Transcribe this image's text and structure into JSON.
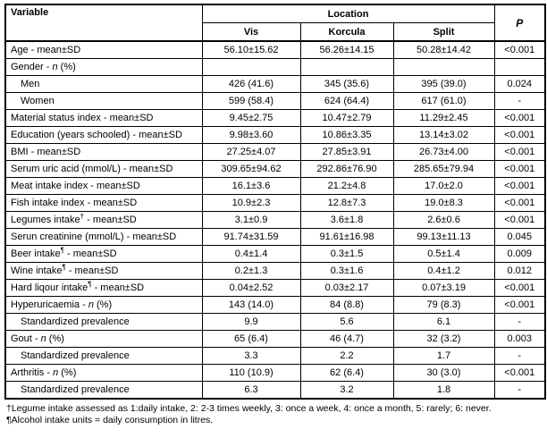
{
  "table": {
    "header": {
      "variable": "Variable",
      "location": "Location",
      "sub": [
        "Vis",
        "Korcula",
        "Split"
      ],
      "p": "P"
    },
    "rows": [
      {
        "indent": false,
        "parts": [
          {
            "t": "Age - mean±SD"
          }
        ],
        "cells": [
          "56.10±15.62",
          "56.26±14.15",
          "50.28±14.42",
          "<0.001"
        ]
      },
      {
        "indent": false,
        "parts": [
          {
            "t": "Gender - "
          },
          {
            "t": "n",
            "i": true
          },
          {
            "t": " (%)"
          }
        ],
        "cells": [
          "",
          "",
          "",
          ""
        ]
      },
      {
        "indent": true,
        "parts": [
          {
            "t": "Men"
          }
        ],
        "cells": [
          "426 (41.6)",
          "345 (35.6)",
          "395 (39.0)",
          "0.024"
        ]
      },
      {
        "indent": true,
        "parts": [
          {
            "t": "Women"
          }
        ],
        "cells": [
          "599 (58.4)",
          "624 (64.4)",
          "617 (61.0)",
          "-"
        ]
      },
      {
        "indent": false,
        "parts": [
          {
            "t": "Material status index - mean±SD"
          }
        ],
        "cells": [
          "9.45±2.75",
          "10.47±2.79",
          "11.29±2.45",
          "<0.001"
        ]
      },
      {
        "indent": false,
        "parts": [
          {
            "t": "Education (years schooled) - mean±SD"
          }
        ],
        "cells": [
          "9.98±3.60",
          "10.86±3.35",
          "13.14±3.02",
          "<0.001"
        ]
      },
      {
        "indent": false,
        "parts": [
          {
            "t": "BMI - mean±SD"
          }
        ],
        "cells": [
          "27.25±4.07",
          "27.85±3.91",
          "26.73±4.00",
          "<0.001"
        ]
      },
      {
        "indent": false,
        "parts": [
          {
            "t": "Serum uric acid (mmol/L) - mean±SD"
          }
        ],
        "cells": [
          "309.65±94.62",
          "292.86±76.90",
          "285.65±79.94",
          "<0.001"
        ]
      },
      {
        "indent": false,
        "parts": [
          {
            "t": "Meat intake index - mean±SD"
          }
        ],
        "cells": [
          "16.1±3.6",
          "21.2±4.8",
          "17.0±2.0",
          "<0.001"
        ]
      },
      {
        "indent": false,
        "parts": [
          {
            "t": "Fish intake index - mean±SD"
          }
        ],
        "cells": [
          "10.9±2.3",
          "12.8±7.3",
          "19.0±8.3",
          "<0.001"
        ]
      },
      {
        "indent": false,
        "parts": [
          {
            "t": "Legumes intake"
          },
          {
            "t": "†",
            "sup": true
          },
          {
            "t": " - mean±SD"
          }
        ],
        "cells": [
          "3.1±0.9",
          "3.6±1.8",
          "2.6±0.6",
          "<0.001"
        ]
      },
      {
        "indent": false,
        "parts": [
          {
            "t": "Serun creatinine (mmol/L) - mean±SD"
          }
        ],
        "cells": [
          "91.74±31.59",
          "91.61±16.98",
          "99.13±11.13",
          "0.045"
        ]
      },
      {
        "indent": false,
        "parts": [
          {
            "t": "Beer intake"
          },
          {
            "t": "¶",
            "sup": true
          },
          {
            "t": " - mean±SD"
          }
        ],
        "cells": [
          "0.4±1.4",
          "0.3±1.5",
          "0.5±1.4",
          "0.009"
        ]
      },
      {
        "indent": false,
        "parts": [
          {
            "t": "Wine intake"
          },
          {
            "t": "¶",
            "sup": true
          },
          {
            "t": " - mean±SD"
          }
        ],
        "cells": [
          "0.2±1.3",
          "0.3±1.6",
          "0.4±1.2",
          "0.012"
        ]
      },
      {
        "indent": false,
        "parts": [
          {
            "t": "Hard liqour intake"
          },
          {
            "t": "¶",
            "sup": true
          },
          {
            "t": " - mean±SD"
          }
        ],
        "cells": [
          "0.04±2.52",
          "0.03±2.17",
          "0.07±3.19",
          "<0.001"
        ]
      },
      {
        "indent": false,
        "parts": [
          {
            "t": "Hyperuricaemia - "
          },
          {
            "t": "n",
            "i": true
          },
          {
            "t": " (%)"
          }
        ],
        "cells": [
          "143 (14.0)",
          "84 (8.8)",
          "79 (8.3)",
          "<0.001"
        ]
      },
      {
        "indent": true,
        "parts": [
          {
            "t": "Standardized prevalence"
          }
        ],
        "cells": [
          "9.9",
          "5.6",
          "6.1",
          "-"
        ]
      },
      {
        "indent": false,
        "parts": [
          {
            "t": "Gout - "
          },
          {
            "t": "n",
            "i": true
          },
          {
            "t": " (%)"
          }
        ],
        "cells": [
          "65 (6.4)",
          "46 (4.7)",
          "32 (3.2)",
          "0.003"
        ]
      },
      {
        "indent": true,
        "parts": [
          {
            "t": "Standardized prevalence"
          }
        ],
        "cells": [
          "3.3",
          "2.2",
          "1.7",
          "-"
        ]
      },
      {
        "indent": false,
        "parts": [
          {
            "t": "Arthritis - "
          },
          {
            "t": "n",
            "i": true
          },
          {
            "t": " (%)"
          }
        ],
        "cells": [
          "110 (10.9)",
          "62 (6.4)",
          "30 (3.0)",
          "<0.001"
        ]
      },
      {
        "indent": true,
        "parts": [
          {
            "t": "Standardized prevalence"
          }
        ],
        "cells": [
          "6.3",
          "3.2",
          "1.8",
          "-"
        ]
      }
    ]
  },
  "footnotes": [
    "†Legume intake assessed as 1:daily intake, 2: 2-3 times weekly, 3: once a week, 4: once a month, 5: rarely; 6: never.",
    "¶Alcohol intake units = daily consumption in litres."
  ],
  "colors": {
    "border": "#000000",
    "background": "#ffffff",
    "text": "#000000"
  }
}
